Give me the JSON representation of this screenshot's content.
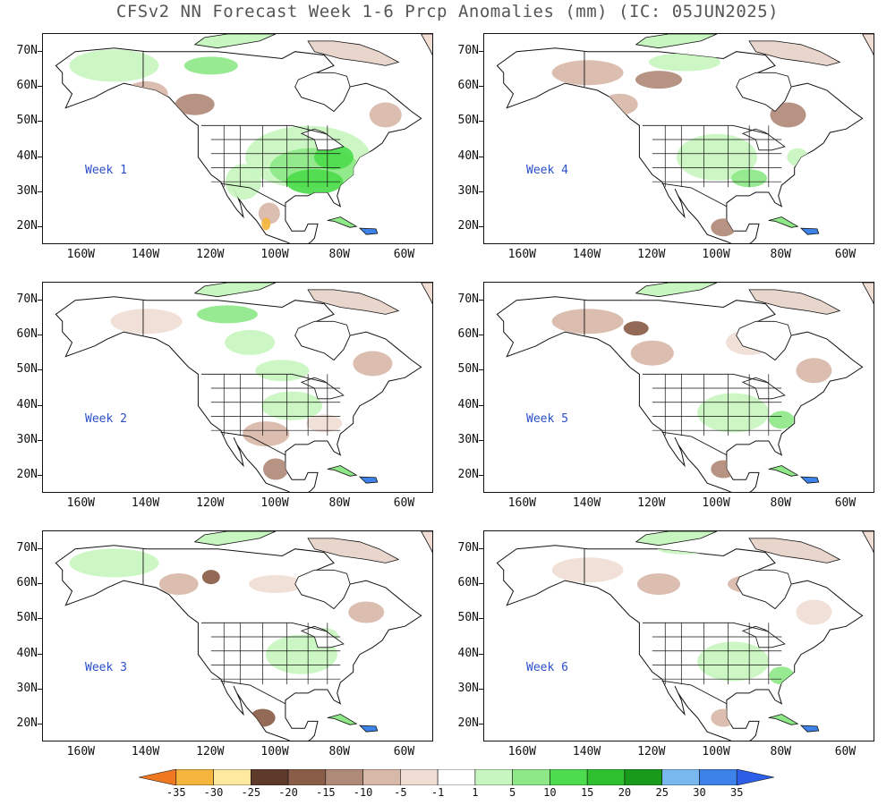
{
  "title": "CFSv2 NN Forecast Week 1-6 Prcp Anomalies (mm) (IC: 05JUN2025)",
  "lat_labels": [
    "70N",
    "60N",
    "50N",
    "40N",
    "30N",
    "20N"
  ],
  "lon_labels": [
    "160W",
    "140W",
    "120W",
    "100W",
    "80W",
    "60W"
  ],
  "panels": [
    {
      "label": "Week 1",
      "anomaly": "wet-east"
    },
    {
      "label": "Week 4",
      "anomaly": "mixed"
    },
    {
      "label": "Week 2",
      "anomaly": "mixed"
    },
    {
      "label": "Week 5",
      "anomaly": "mixed"
    },
    {
      "label": "Week 3",
      "anomaly": "mixed"
    },
    {
      "label": "Week 6",
      "anomaly": "mixed"
    }
  ],
  "colorbar": {
    "labels": [
      "-35",
      "-30",
      "-25",
      "-20",
      "-15",
      "-10",
      "-5",
      "-1",
      "1",
      "5",
      "10",
      "15",
      "20",
      "25",
      "30",
      "35"
    ],
    "colors": [
      "#f07820",
      "#f5b43c",
      "#fde9a0",
      "#5e3a2a",
      "#8a5d48",
      "#b08a78",
      "#d8b8a8",
      "#f0ddd4",
      "#ffffff",
      "#c8f6c0",
      "#8ee888",
      "#4ddc4d",
      "#2ec02e",
      "#1a9a1a",
      "#78b8ee",
      "#3c82e8",
      "#2c5ee8"
    ]
  }
}
